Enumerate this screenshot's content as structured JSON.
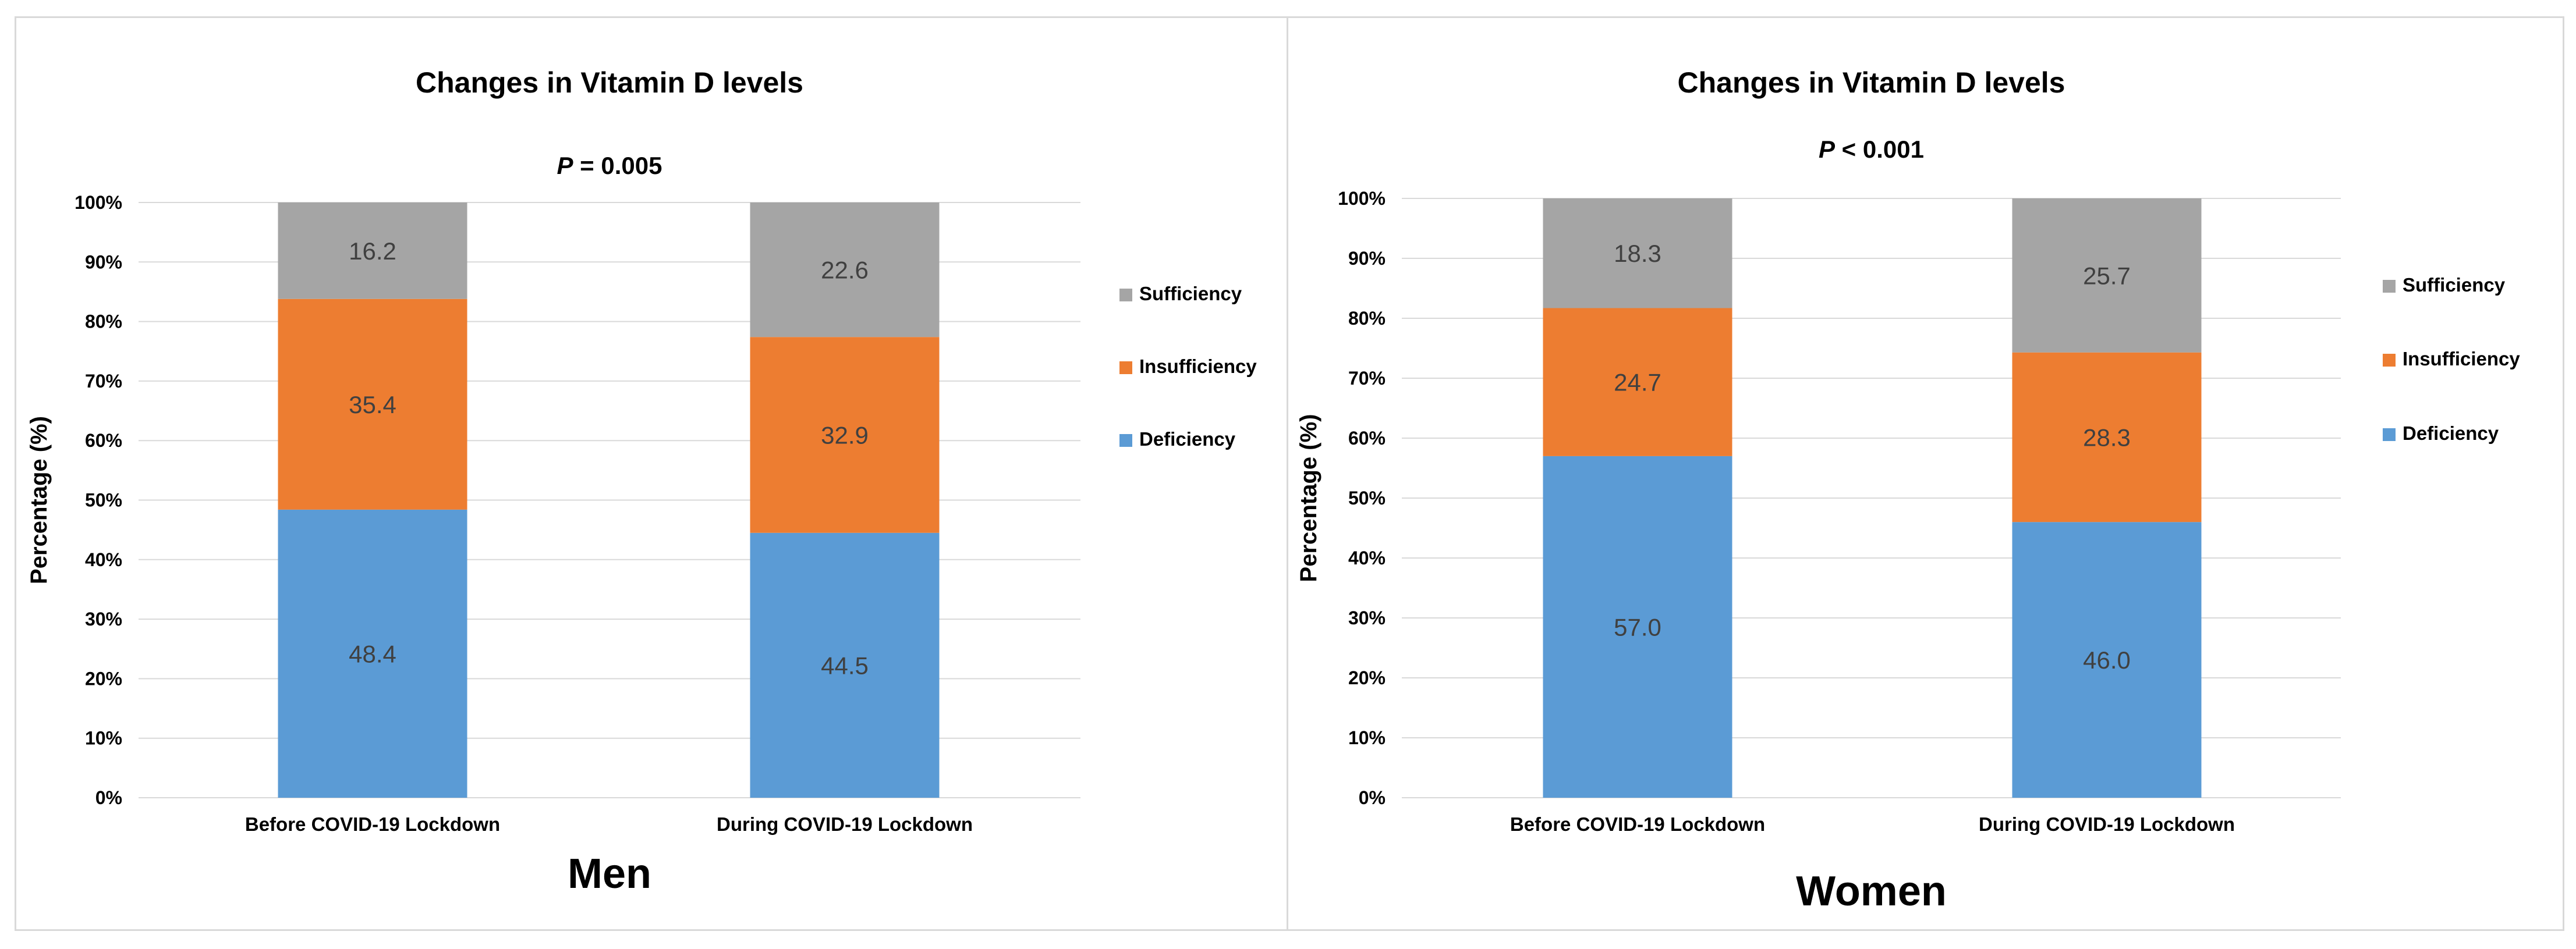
{
  "chart_data": [
    {
      "type": "bar",
      "stacked": true,
      "title": "Changes in Vitamin D levels",
      "p_value": {
        "symbol": "P",
        "text": " = 0.005"
      },
      "panel_label": "Men",
      "ylabel": "Percentage (%)",
      "xlabel": "",
      "ylim": [
        0,
        100
      ],
      "yticks": [
        "0%",
        "10%",
        "20%",
        "30%",
        "40%",
        "50%",
        "60%",
        "70%",
        "80%",
        "90%",
        "100%"
      ],
      "categories": [
        "Before COVID-19 Lockdown",
        "During COVID-19 Lockdown"
      ],
      "series": [
        {
          "name": "Deficiency",
          "color": "#5b9bd5",
          "values": [
            48.4,
            44.5
          ],
          "labels": [
            "48.4",
            "44.5"
          ]
        },
        {
          "name": "Insufficiency",
          "color": "#ed7d31",
          "values": [
            35.4,
            32.9
          ],
          "labels": [
            "35.4",
            "32.9"
          ]
        },
        {
          "name": "Sufficiency",
          "color": "#a5a5a5",
          "values": [
            16.2,
            22.6
          ],
          "labels": [
            "16.2",
            "22.6"
          ]
        }
      ],
      "legend": {
        "position": "right",
        "order": [
          "Sufficiency",
          "Insufficiency",
          "Deficiency"
        ]
      },
      "grid": true
    },
    {
      "type": "bar",
      "stacked": true,
      "title": "Changes in Vitamin D levels",
      "p_value": {
        "symbol": "P",
        "text": " < 0.001"
      },
      "panel_label": "Women",
      "ylabel": "Percentage (%)",
      "xlabel": "",
      "ylim": [
        0,
        100
      ],
      "yticks": [
        "0%",
        "10%",
        "20%",
        "30%",
        "40%",
        "50%",
        "60%",
        "70%",
        "80%",
        "90%",
        "100%"
      ],
      "categories": [
        "Before COVID-19 Lockdown",
        "During COVID-19 Lockdown"
      ],
      "series": [
        {
          "name": "Deficiency",
          "color": "#5b9bd5",
          "values": [
            57.0,
            46.0
          ],
          "labels": [
            "57.0",
            "46.0"
          ]
        },
        {
          "name": "Insufficiency",
          "color": "#ed7d31",
          "values": [
            24.7,
            28.3
          ],
          "labels": [
            "24.7",
            "28.3"
          ]
        },
        {
          "name": "Sufficiency",
          "color": "#a5a5a5",
          "values": [
            18.3,
            25.7
          ],
          "labels": [
            "18.3",
            "25.7"
          ]
        }
      ],
      "legend": {
        "position": "right",
        "order": [
          "Sufficiency",
          "Insufficiency",
          "Deficiency"
        ]
      },
      "grid": true
    }
  ]
}
